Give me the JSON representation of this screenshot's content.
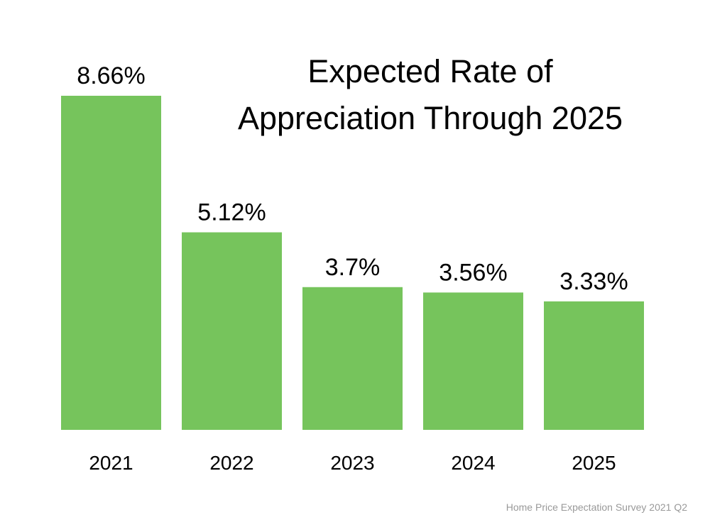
{
  "chart_data": {
    "type": "bar",
    "title": [
      "Expected Rate of",
      "Appreciation Through 2025"
    ],
    "categories": [
      "2021",
      "2022",
      "2023",
      "2024",
      "2025"
    ],
    "values": [
      8.66,
      5.12,
      3.7,
      3.56,
      3.33
    ],
    "data_labels": [
      "8.66%",
      "5.12%",
      "3.7%",
      "3.56%",
      "3.33%"
    ],
    "xlabel": "",
    "ylabel": "",
    "ylim": [
      0,
      8.66
    ],
    "grid": false,
    "bar_color": "#76C45C",
    "source": "Home Price Expectation Survey 2021 Q2"
  }
}
